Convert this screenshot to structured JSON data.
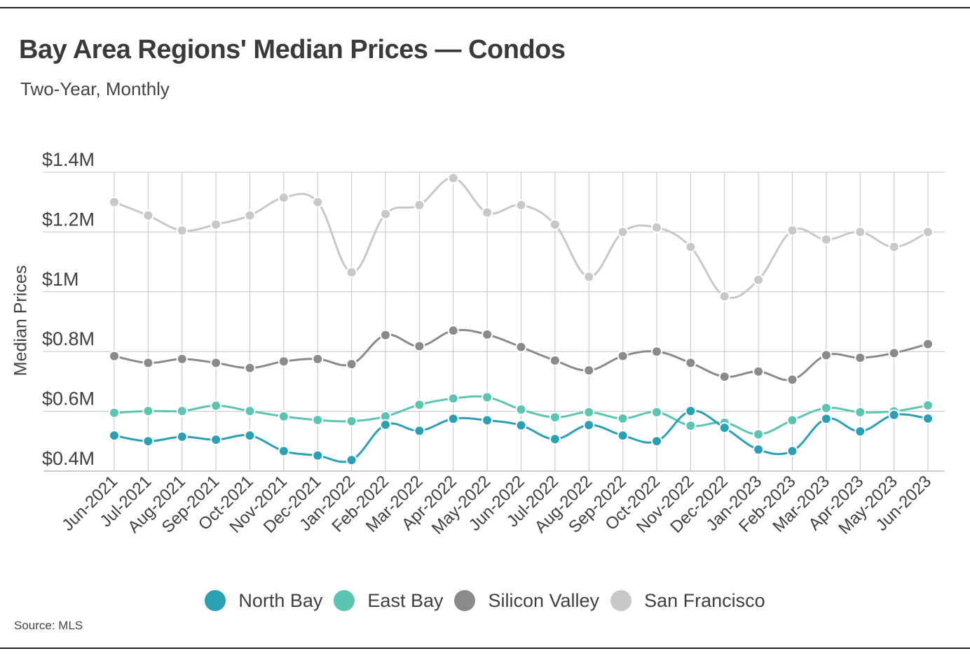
{
  "header": {
    "title": "Bay Area Regions' Median Prices — Condos",
    "subtitle": "Two-Year, Monthly"
  },
  "footer": {
    "source": "Source:  MLS"
  },
  "chart_data": {
    "type": "line",
    "title": "Bay Area Regions' Median Prices — Condos",
    "subtitle": "Two-Year, Monthly",
    "xlabel": "",
    "ylabel": "Median Prices",
    "ylim": [
      0.4,
      1.4
    ],
    "yticks": [
      0.4,
      0.6,
      0.8,
      1.0,
      1.2,
      1.4
    ],
    "ytick_labels": [
      "$0.4M",
      "$0.6M",
      "$0.8M",
      "$1M",
      "$1.2M",
      "$1.4M"
    ],
    "grid": "vertical and horizontal",
    "legend_position": "bottom-center",
    "categories": [
      "Jun-2021",
      "Jul-2021",
      "Aug-2021",
      "Sep-2021",
      "Oct-2021",
      "Nov-2021",
      "Dec-2021",
      "Jan-2022",
      "Feb-2022",
      "Mar-2022",
      "Apr-2022",
      "May-2022",
      "Jun-2022",
      "Jul-2022",
      "Aug-2022",
      "Sep-2022",
      "Oct-2022",
      "Nov-2022",
      "Dec-2022",
      "Jan-2023",
      "Feb-2023",
      "Mar-2023",
      "Apr-2023",
      "May-2023",
      "Jun-2023"
    ],
    "series": [
      {
        "name": "San Francisco",
        "color": "#c8c8c8",
        "values": [
          1.3,
          1.255,
          1.205,
          1.225,
          1.255,
          1.315,
          1.3,
          1.065,
          1.26,
          1.29,
          1.38,
          1.265,
          1.29,
          1.225,
          1.05,
          1.2,
          1.215,
          1.15,
          0.985,
          1.04,
          1.205,
          1.175,
          1.2,
          1.15,
          1.2
        ]
      },
      {
        "name": "Silicon Valley",
        "color": "#8a8a8a",
        "values": [
          0.785,
          0.762,
          0.775,
          0.762,
          0.745,
          0.767,
          0.775,
          0.758,
          0.855,
          0.818,
          0.87,
          0.857,
          0.815,
          0.77,
          0.737,
          0.785,
          0.8,
          0.762,
          0.716,
          0.733,
          0.706,
          0.788,
          0.779,
          0.795,
          0.825
        ]
      },
      {
        "name": "East Bay",
        "color": "#5cc5b2",
        "values": [
          0.595,
          0.601,
          0.601,
          0.619,
          0.601,
          0.583,
          0.571,
          0.567,
          0.583,
          0.622,
          0.643,
          0.647,
          0.606,
          0.58,
          0.597,
          0.576,
          0.597,
          0.552,
          0.562,
          0.523,
          0.57,
          0.611,
          0.597,
          0.6,
          0.62
        ]
      },
      {
        "name": "North Bay",
        "color": "#2aa0b4",
        "values": [
          0.519,
          0.5,
          0.515,
          0.505,
          0.519,
          0.467,
          0.452,
          0.437,
          0.555,
          0.535,
          0.575,
          0.57,
          0.553,
          0.507,
          0.554,
          0.519,
          0.5,
          0.601,
          0.545,
          0.472,
          0.467,
          0.575,
          0.533,
          0.588,
          0.576
        ]
      }
    ],
    "legend_order": [
      "North Bay",
      "East Bay",
      "Silicon Valley",
      "San Francisco"
    ]
  },
  "legend": [
    {
      "name": "North Bay",
      "color": "#2aa0b4"
    },
    {
      "name": "East Bay",
      "color": "#5cc5b2"
    },
    {
      "name": "Silicon Valley",
      "color": "#8a8a8a"
    },
    {
      "name": "San Francisco",
      "color": "#c8c8c8"
    }
  ]
}
